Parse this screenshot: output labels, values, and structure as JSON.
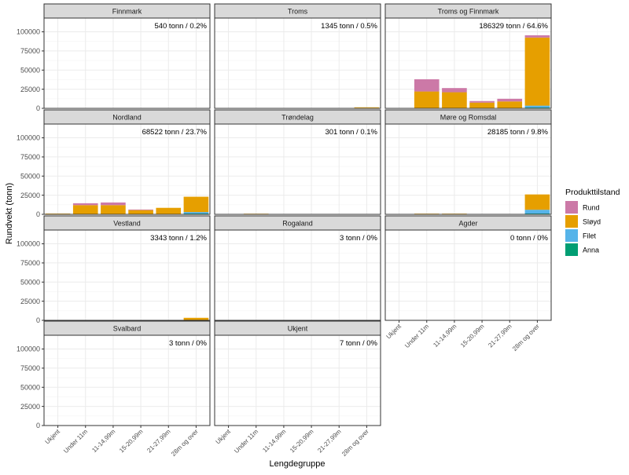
{
  "chart_data": {
    "type": "bar",
    "stacked": true,
    "faceted": true,
    "xlabel": "Lengdegruppe",
    "ylabel": "Rundvekt (tonn)",
    "categories": [
      "Ukjent",
      "Under 11m",
      "11-14,99m",
      "15-20,99m",
      "21-27,99m",
      "28m og over"
    ],
    "yticks": [
      0,
      25000,
      50000,
      75000,
      100000
    ],
    "ytick_labels": [
      "0",
      "25000",
      "50000",
      "75000",
      "100000"
    ],
    "ylim": [
      0,
      118000
    ],
    "legend": {
      "title": "Produkttilstand",
      "position": "right",
      "items": [
        {
          "name": "Rund",
          "color": "#CC79A7"
        },
        {
          "name": "Sløyd",
          "color": "#E69F00"
        },
        {
          "name": "Filet",
          "color": "#56B4E9"
        },
        {
          "name": "Anna",
          "color": "#009E73"
        }
      ]
    },
    "series_order": [
      "Anna",
      "Filet",
      "Sløyd",
      "Rund"
    ],
    "panels": [
      {
        "title": "Finnmark",
        "label": "540 tonn / 0.2%",
        "data": {
          "Rund": [
            0,
            0,
            0,
            0,
            0,
            0
          ],
          "Sløyd": [
            0,
            0,
            0,
            0,
            0,
            0
          ],
          "Filet": [
            0,
            0,
            0,
            0,
            0,
            0
          ],
          "Anna": [
            0,
            0,
            0,
            0,
            0,
            0
          ]
        }
      },
      {
        "title": "Troms",
        "label": "1345 tonn / 0.5%",
        "data": {
          "Rund": [
            0,
            0,
            0,
            0,
            0,
            0
          ],
          "Sløyd": [
            0,
            0,
            0,
            0,
            0,
            1300
          ],
          "Filet": [
            0,
            0,
            0,
            0,
            0,
            0
          ],
          "Anna": [
            0,
            0,
            0,
            0,
            0,
            0
          ]
        }
      },
      {
        "title": "Troms og Finnmark",
        "label": "186329 tonn / 64.6%",
        "data": {
          "Rund": [
            0,
            16000,
            5500,
            2000,
            3500,
            3000
          ],
          "Sløyd": [
            0,
            22000,
            21000,
            7500,
            9000,
            89000
          ],
          "Filet": [
            0,
            0,
            0,
            0,
            0,
            2500
          ],
          "Anna": [
            0,
            0,
            0,
            0,
            0,
            1000
          ]
        }
      },
      {
        "title": "Nordland",
        "label": "68522 tonn / 23.7%",
        "data": {
          "Rund": [
            0,
            2500,
            3500,
            500,
            0,
            0
          ],
          "Sløyd": [
            1000,
            12000,
            12000,
            5500,
            8500,
            20000
          ],
          "Filet": [
            0,
            0,
            0,
            0,
            0,
            2000
          ],
          "Anna": [
            0,
            0,
            0,
            0,
            0,
            1000
          ]
        }
      },
      {
        "title": "Trøndelag",
        "label": "301 tonn / 0.1%",
        "data": {
          "Rund": [
            0,
            0,
            0,
            0,
            0,
            0
          ],
          "Sløyd": [
            0,
            300,
            0,
            0,
            0,
            0
          ],
          "Filet": [
            0,
            0,
            0,
            0,
            0,
            0
          ],
          "Anna": [
            0,
            0,
            0,
            0,
            0,
            0
          ]
        }
      },
      {
        "title": "Møre og Romsdal",
        "label": "28185 tonn / 9.8%",
        "data": {
          "Rund": [
            0,
            0,
            0,
            0,
            0,
            0
          ],
          "Sløyd": [
            0,
            900,
            900,
            0,
            0,
            20000
          ],
          "Filet": [
            0,
            0,
            0,
            0,
            0,
            5000
          ],
          "Anna": [
            0,
            0,
            0,
            0,
            0,
            1000
          ]
        }
      },
      {
        "title": "Vestland",
        "label": "3343 tonn / 1.2%",
        "data": {
          "Rund": [
            0,
            0,
            0,
            0,
            0,
            0
          ],
          "Sløyd": [
            0,
            0,
            0,
            0,
            0,
            3300
          ],
          "Filet": [
            0,
            0,
            0,
            0,
            0,
            0
          ],
          "Anna": [
            0,
            0,
            0,
            0,
            0,
            0
          ]
        }
      },
      {
        "title": "Rogaland",
        "label": "3 tonn / 0%",
        "data": {
          "Rund": [
            0,
            0,
            0,
            0,
            0,
            0
          ],
          "Sløyd": [
            0,
            0,
            0,
            0,
            0,
            0
          ],
          "Filet": [
            0,
            0,
            0,
            0,
            0,
            0
          ],
          "Anna": [
            0,
            0,
            0,
            0,
            0,
            0
          ]
        }
      },
      {
        "title": "Agder",
        "label": "0 tonn / 0%",
        "data": {
          "Rund": [
            0,
            0,
            0,
            0,
            0,
            0
          ],
          "Sløyd": [
            0,
            0,
            0,
            0,
            0,
            0
          ],
          "Filet": [
            0,
            0,
            0,
            0,
            0,
            0
          ],
          "Anna": [
            0,
            0,
            0,
            0,
            0,
            0
          ]
        }
      },
      {
        "title": "Svalbard",
        "label": "3 tonn / 0%",
        "data": {
          "Rund": [
            0,
            0,
            0,
            0,
            0,
            0
          ],
          "Sløyd": [
            0,
            0,
            0,
            0,
            0,
            0
          ],
          "Filet": [
            0,
            0,
            0,
            0,
            0,
            0
          ],
          "Anna": [
            0,
            0,
            0,
            0,
            0,
            0
          ]
        }
      },
      {
        "title": "Ukjent",
        "label": "7 tonn / 0%",
        "data": {
          "Rund": [
            0,
            0,
            0,
            0,
            0,
            0
          ],
          "Sløyd": [
            0,
            0,
            0,
            0,
            0,
            0
          ],
          "Filet": [
            0,
            0,
            0,
            0,
            0,
            0
          ],
          "Anna": [
            0,
            0,
            0,
            0,
            0,
            0
          ]
        }
      }
    ]
  }
}
